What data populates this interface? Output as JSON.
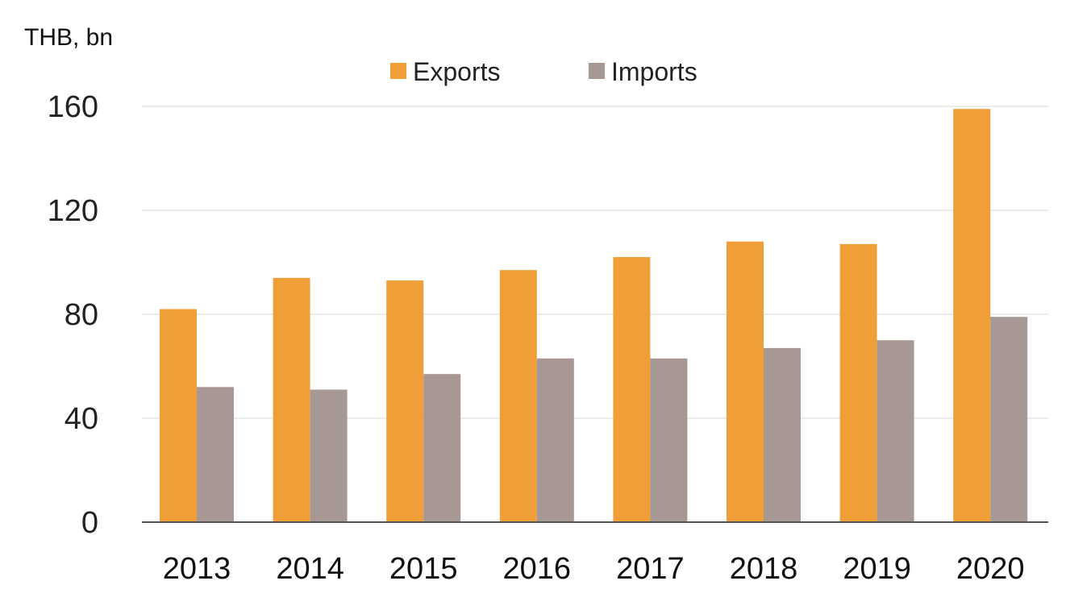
{
  "colors": {
    "exports": "#f09e38",
    "imports": "#a89893"
  },
  "chart_data": {
    "type": "bar",
    "title": "",
    "xlabel": "",
    "ylabel": "THB, bn",
    "ylim": [
      0,
      160
    ],
    "yticks": [
      0,
      40,
      80,
      120,
      160
    ],
    "grid": true,
    "legend_position": "top-center",
    "categories": [
      "2013",
      "2014",
      "2015",
      "2016",
      "2017",
      "2018",
      "2019",
      "2020"
    ],
    "series": [
      {
        "name": "Exports",
        "values": [
          82,
          94,
          93,
          97,
          102,
          108,
          107,
          159
        ]
      },
      {
        "name": "Imports",
        "values": [
          52,
          51,
          57,
          63,
          63,
          67,
          70,
          79
        ]
      }
    ]
  }
}
